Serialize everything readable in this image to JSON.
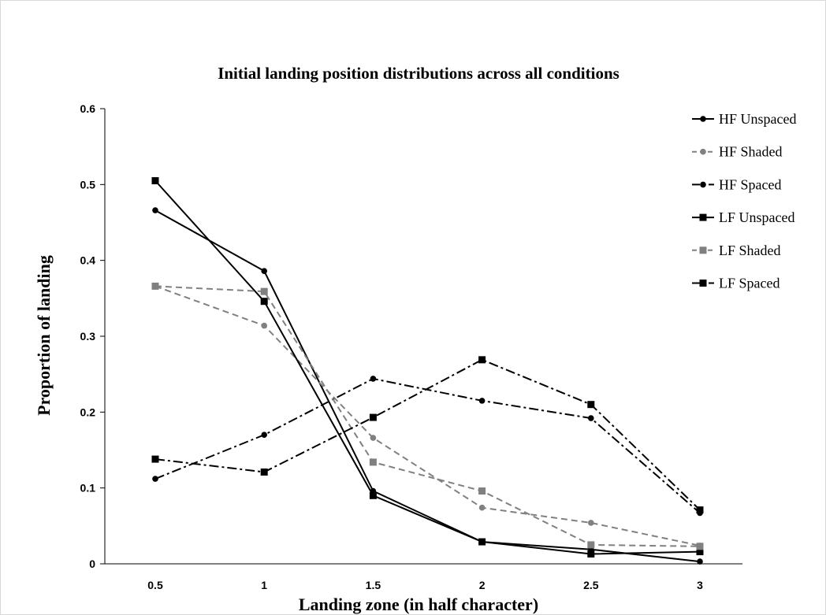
{
  "chart_data": {
    "type": "line",
    "title": "Initial landing position distributions across all conditions",
    "xlabel": "Landing zone (in half character)",
    "ylabel": "Proportion of landing",
    "categories": [
      "0.5",
      "1",
      "1.5",
      "2",
      "2.5",
      "3"
    ],
    "yticks": [
      "0",
      "0.1",
      "0.2",
      "0.3",
      "0.4",
      "0.5",
      "0.6"
    ],
    "ylim": [
      0,
      0.6
    ],
    "grid": false,
    "legend_position": "right",
    "series": [
      {
        "name": "HF Unspaced",
        "values": [
          0.466,
          0.386,
          0.096,
          0.029,
          0.019,
          0.003
        ],
        "color": "#000000",
        "dash": "solid",
        "marker": "circle"
      },
      {
        "name": "HF Shaded",
        "values": [
          0.366,
          0.314,
          0.166,
          0.074,
          0.054,
          0.024
        ],
        "color": "#808080",
        "dash": "dashed",
        "marker": "circle"
      },
      {
        "name": "HF Spaced",
        "values": [
          0.112,
          0.17,
          0.244,
          0.215,
          0.192,
          0.067
        ],
        "color": "#000000",
        "dash": "dashdot",
        "marker": "circle"
      },
      {
        "name": "LF Unspaced",
        "values": [
          0.505,
          0.346,
          0.09,
          0.029,
          0.013,
          0.016
        ],
        "color": "#000000",
        "dash": "solid",
        "marker": "square"
      },
      {
        "name": "LF Shaded",
        "values": [
          0.366,
          0.359,
          0.134,
          0.096,
          0.025,
          0.023
        ],
        "color": "#808080",
        "dash": "dashed",
        "marker": "square"
      },
      {
        "name": "LF Spaced",
        "values": [
          0.138,
          0.121,
          0.193,
          0.269,
          0.21,
          0.071
        ],
        "color": "#000000",
        "dash": "dashdot",
        "marker": "square"
      }
    ]
  }
}
